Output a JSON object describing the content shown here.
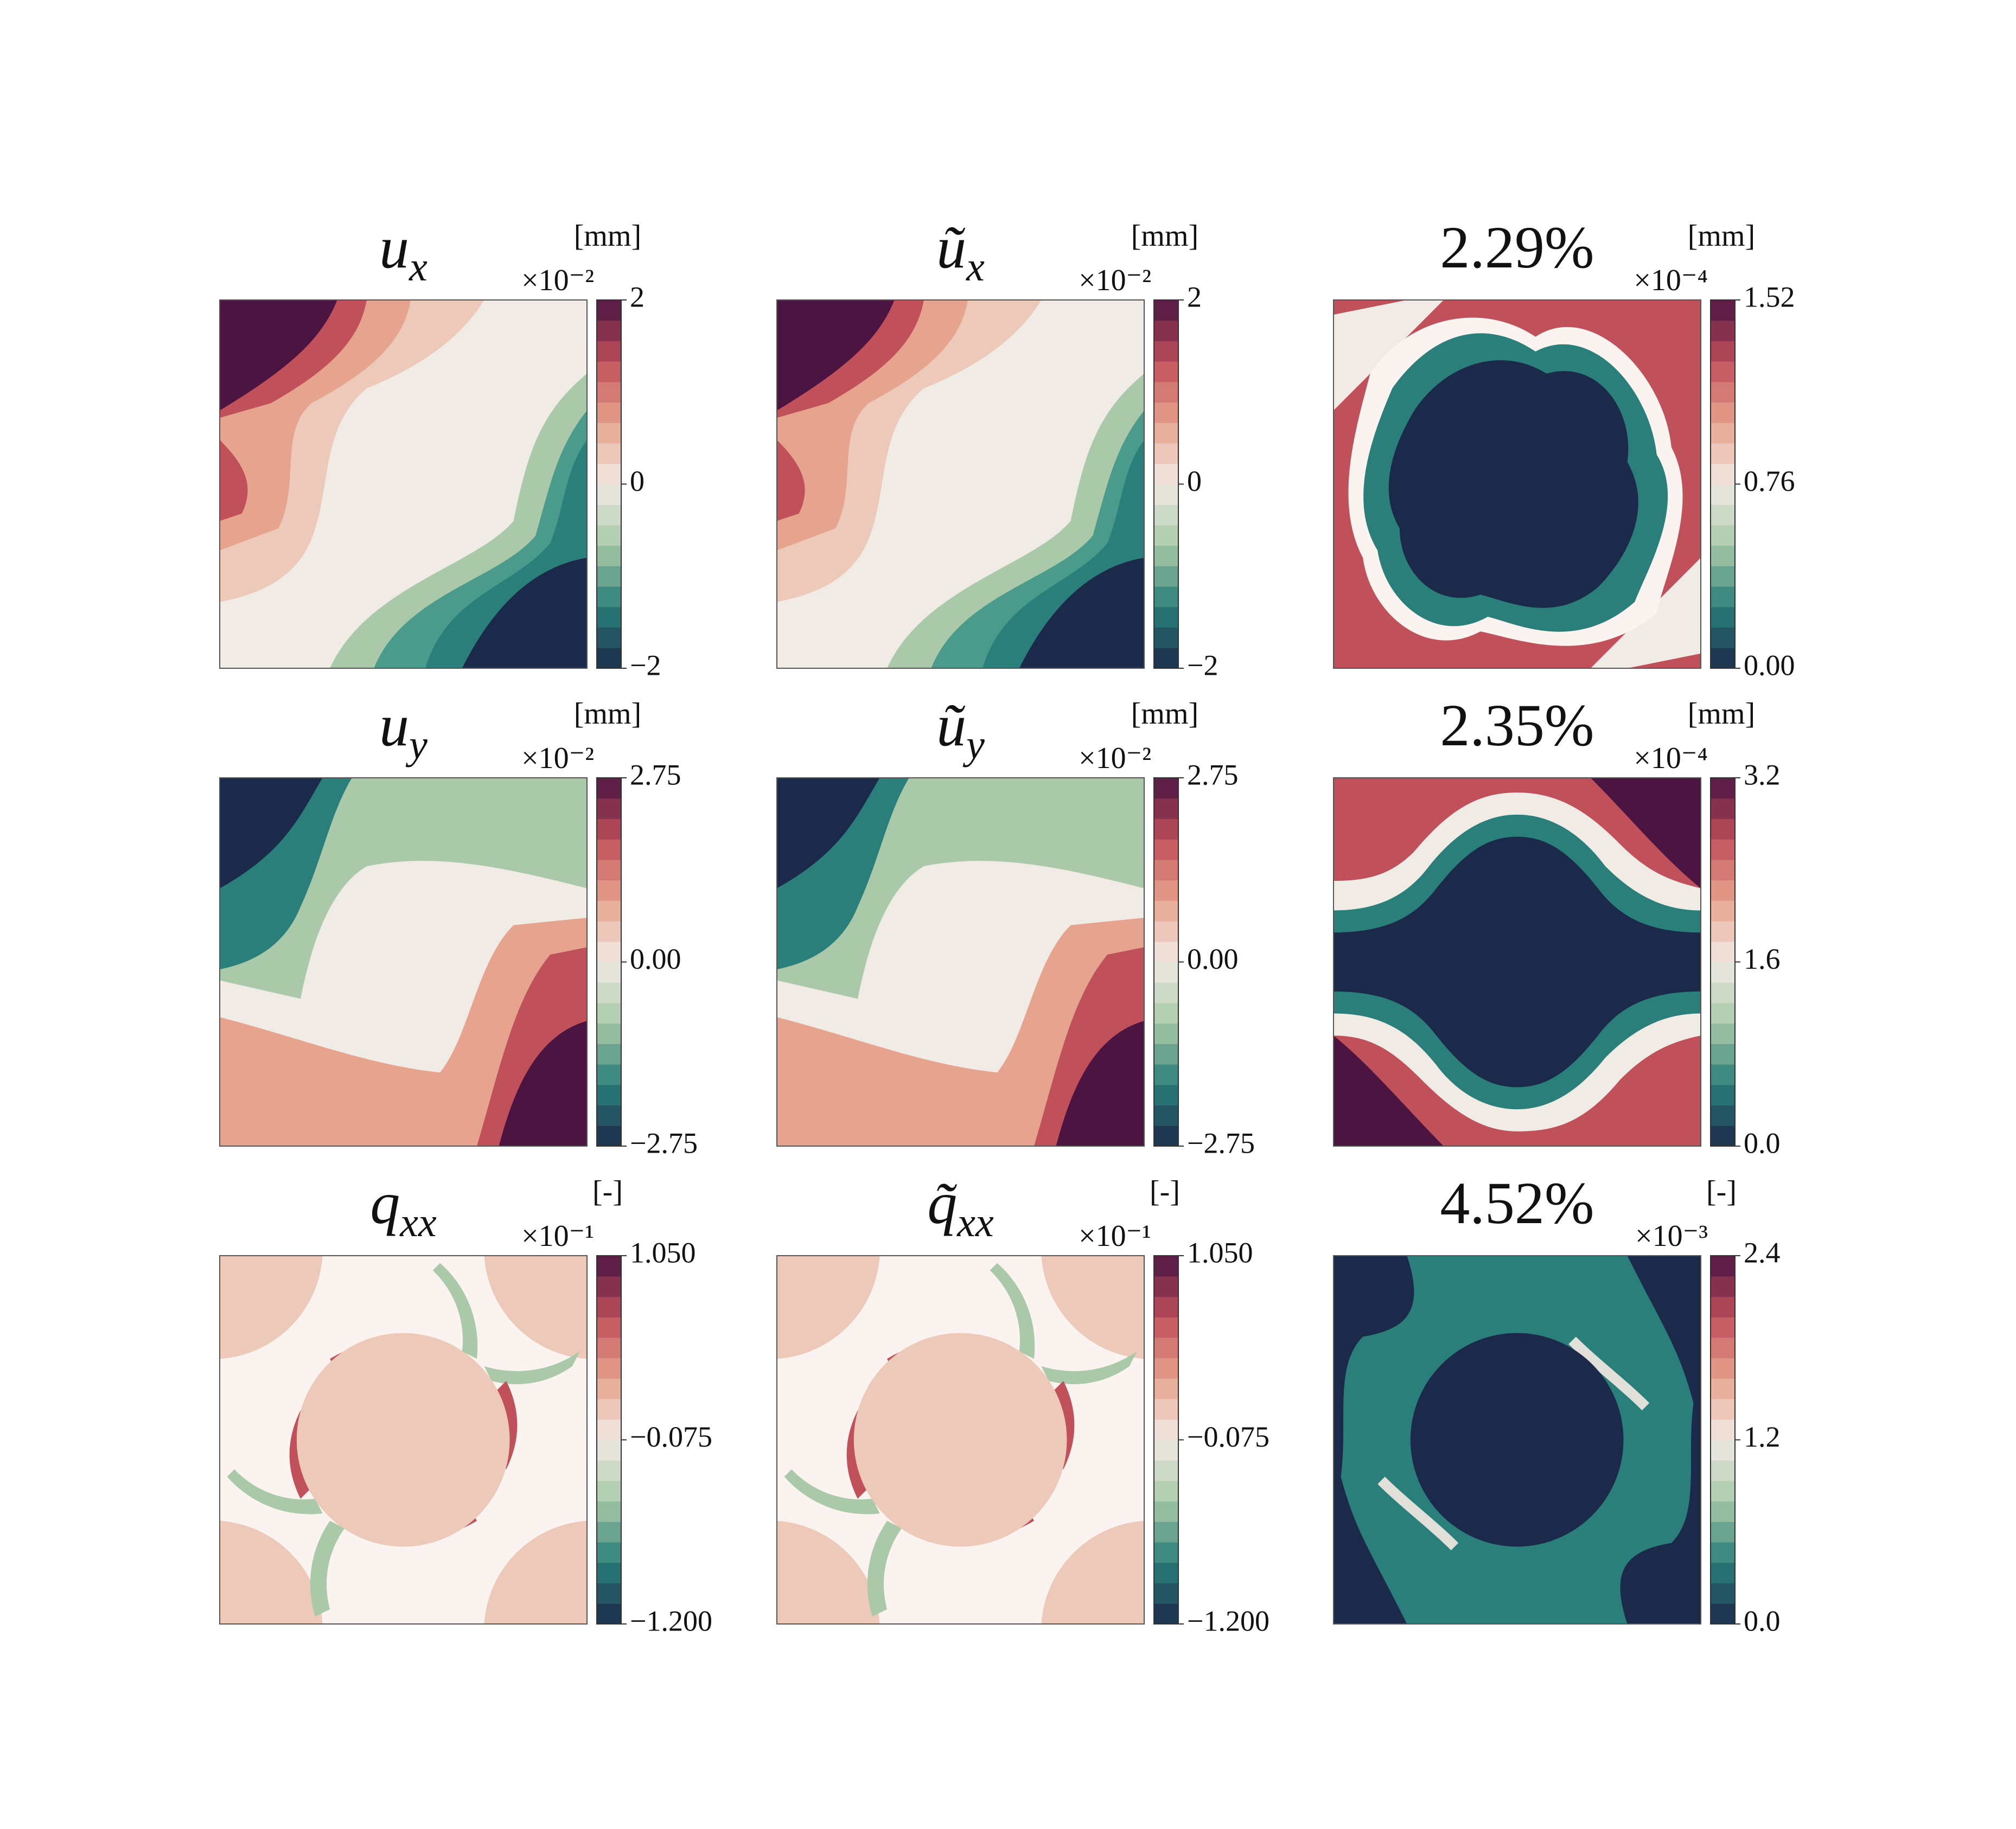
{
  "chart_data": [
    {
      "type": "contour",
      "title": "u",
      "title_sub": "x",
      "unit": "[mm]",
      "offset_text": "×10⁻²",
      "clim": [
        -2,
        2
      ],
      "cticks": [
        {
          "value": -2,
          "label": "−2"
        },
        0,
        2
      ],
      "colormap": [
        "#1b2a4a",
        "#2a7f7a",
        "#a9c9a8",
        "#f1ebe5",
        "#e6a38e",
        "#c0505a",
        "#4b1441"
      ]
    },
    {
      "type": "contour",
      "title": "ũ",
      "title_sub": "x",
      "unit": "[mm]",
      "offset_text": "×10⁻²",
      "clim": [
        -2,
        2
      ],
      "cticks": [
        {
          "value": -2,
          "label": "−2"
        },
        0,
        2
      ],
      "colormap": [
        "#1b2a4a",
        "#2a7f7a",
        "#a9c9a8",
        "#f1ebe5",
        "#e6a38e",
        "#c0505a",
        "#4b1441"
      ]
    },
    {
      "type": "contour",
      "title": "2.29%",
      "unit": "[mm]",
      "offset_text": "×10⁻⁴",
      "clim": [
        0,
        1.52
      ],
      "cticks": [
        {
          "value": 0,
          "label": "0.00"
        },
        0.76,
        1.52
      ],
      "colormap": [
        "#1b2a4a",
        "#2a7f7a",
        "#a9c9a8",
        "#f1ebe5",
        "#e6a38e",
        "#c0505a",
        "#4b1441"
      ]
    },
    {
      "type": "contour",
      "title": "u",
      "title_sub": "y",
      "unit": "[mm]",
      "offset_text": "×10⁻²",
      "clim": [
        -2.75,
        2.75
      ],
      "cticks": [
        {
          "value": -2.75,
          "label": "−2.75"
        },
        {
          "value": 0,
          "label": "0.00"
        },
        2.75
      ],
      "colormap": [
        "#1b2a4a",
        "#2a7f7a",
        "#a9c9a8",
        "#f1ebe5",
        "#e6a38e",
        "#c0505a",
        "#4b1441"
      ]
    },
    {
      "type": "contour",
      "title": "ũ",
      "title_sub": "y",
      "unit": "[mm]",
      "offset_text": "×10⁻²",
      "clim": [
        -2.75,
        2.75
      ],
      "cticks": [
        {
          "value": -2.75,
          "label": "−2.75"
        },
        {
          "value": 0,
          "label": "0.00"
        },
        2.75
      ],
      "colormap": [
        "#1b2a4a",
        "#2a7f7a",
        "#a9c9a8",
        "#f1ebe5",
        "#e6a38e",
        "#c0505a",
        "#4b1441"
      ]
    },
    {
      "type": "contour",
      "title": "2.35%",
      "unit": "[mm]",
      "offset_text": "×10⁻⁴",
      "clim": [
        0,
        3.2
      ],
      "cticks": [
        {
          "value": 0,
          "label": "0.0"
        },
        1.6,
        3.2
      ],
      "colormap": [
        "#1b2a4a",
        "#2a7f7a",
        "#a9c9a8",
        "#f1ebe5",
        "#e6a38e",
        "#c0505a",
        "#4b1441"
      ]
    },
    {
      "type": "contour",
      "title": "q",
      "title_sub": "xx",
      "unit": "[-]",
      "offset_text": "×10⁻¹",
      "clim": [
        -1.2,
        1.05
      ],
      "cticks": [
        {
          "value": -1.2,
          "label": "−1.200"
        },
        {
          "value": -0.075,
          "label": "−0.075"
        },
        {
          "value": 1.05,
          "label": "1.050"
        }
      ],
      "colormap": [
        "#1b2a4a",
        "#2a7f7a",
        "#a9c9a8",
        "#f1ebe5",
        "#e6a38e",
        "#c0505a",
        "#4b1441"
      ]
    },
    {
      "type": "contour",
      "title": "q̃",
      "title_sub": "xx",
      "unit": "[-]",
      "offset_text": "×10⁻¹",
      "clim": [
        -1.2,
        1.05
      ],
      "cticks": [
        {
          "value": -1.2,
          "label": "−1.200"
        },
        {
          "value": -0.075,
          "label": "−0.075"
        },
        {
          "value": 1.05,
          "label": "1.050"
        }
      ],
      "colormap": [
        "#1b2a4a",
        "#2a7f7a",
        "#a9c9a8",
        "#f1ebe5",
        "#e6a38e",
        "#c0505a",
        "#4b1441"
      ]
    },
    {
      "type": "contour",
      "title": "4.52%",
      "unit": "[-]",
      "offset_text": "×10⁻³",
      "clim": [
        0,
        2.4
      ],
      "cticks": [
        {
          "value": 0,
          "label": "0.0"
        },
        1.2,
        2.4
      ],
      "colormap": [
        "#1b2a4a",
        "#2a7f7a",
        "#a9c9a8",
        "#f1ebe5",
        "#e6a38e",
        "#c0505a",
        "#4b1441"
      ]
    }
  ]
}
